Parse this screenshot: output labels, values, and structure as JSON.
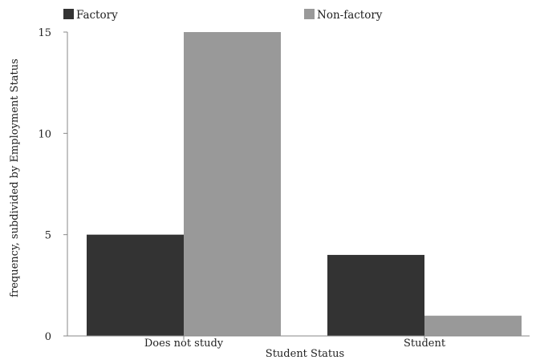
{
  "chart_data": {
    "type": "bar",
    "categories": [
      "Does not study",
      "Student"
    ],
    "series": [
      {
        "name": "Factory",
        "values": [
          5,
          4
        ],
        "color": "#333333"
      },
      {
        "name": "Non-factory",
        "values": [
          15,
          1
        ],
        "color": "#999999"
      }
    ],
    "xlabel": "Student Status",
    "ylabel": "frequency, subdivided by Employment Status",
    "ylim": [
      0,
      15
    ],
    "yticks": [
      "0",
      "5",
      "10",
      "15"
    ],
    "grid": false,
    "legend_position": "top"
  }
}
